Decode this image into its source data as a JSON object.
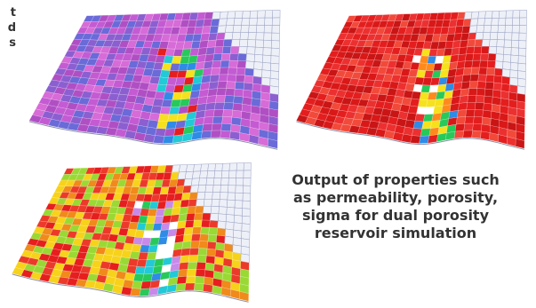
{
  "left_caption_fragment": [
    "t",
    "d",
    "s"
  ],
  "caption": {
    "lines": [
      "Output of properties such",
      "as permeability, porosity,",
      "sigma for dual porosity",
      "reservoir simulation"
    ]
  },
  "panels": [
    {
      "name": "permeability-map",
      "palette": [
        "#b04fc4",
        "#c45bd3",
        "#8b5fd0",
        "#d76bd7",
        "#6a6ad8"
      ],
      "hot": [
        "#e61e1e",
        "#f6e11c",
        "#27c95a",
        "#2e8be6",
        "#22c9d6"
      ]
    },
    {
      "name": "porosity-map",
      "palette": [
        "#e41e1e",
        "#d91818",
        "#ec3030",
        "#c91515",
        "#f24a3a"
      ],
      "hot": [
        "#f6e11c",
        "#27c95a",
        "#2e8be6",
        "#ff8a1c",
        "#ffffff"
      ]
    },
    {
      "name": "sigma-map",
      "palette": [
        "#e61e1e",
        "#f08a1a",
        "#f7d21a",
        "#9ad934",
        "#ec3a2a"
      ],
      "hot": [
        "#2e8be6",
        "#22c9d6",
        "#ffffff",
        "#c78ae8",
        "#27c95a"
      ]
    }
  ],
  "colors": {
    "grid_blank": "#eef0f8",
    "grid_line": "#9aa3c4",
    "caption_text": "#333333"
  }
}
